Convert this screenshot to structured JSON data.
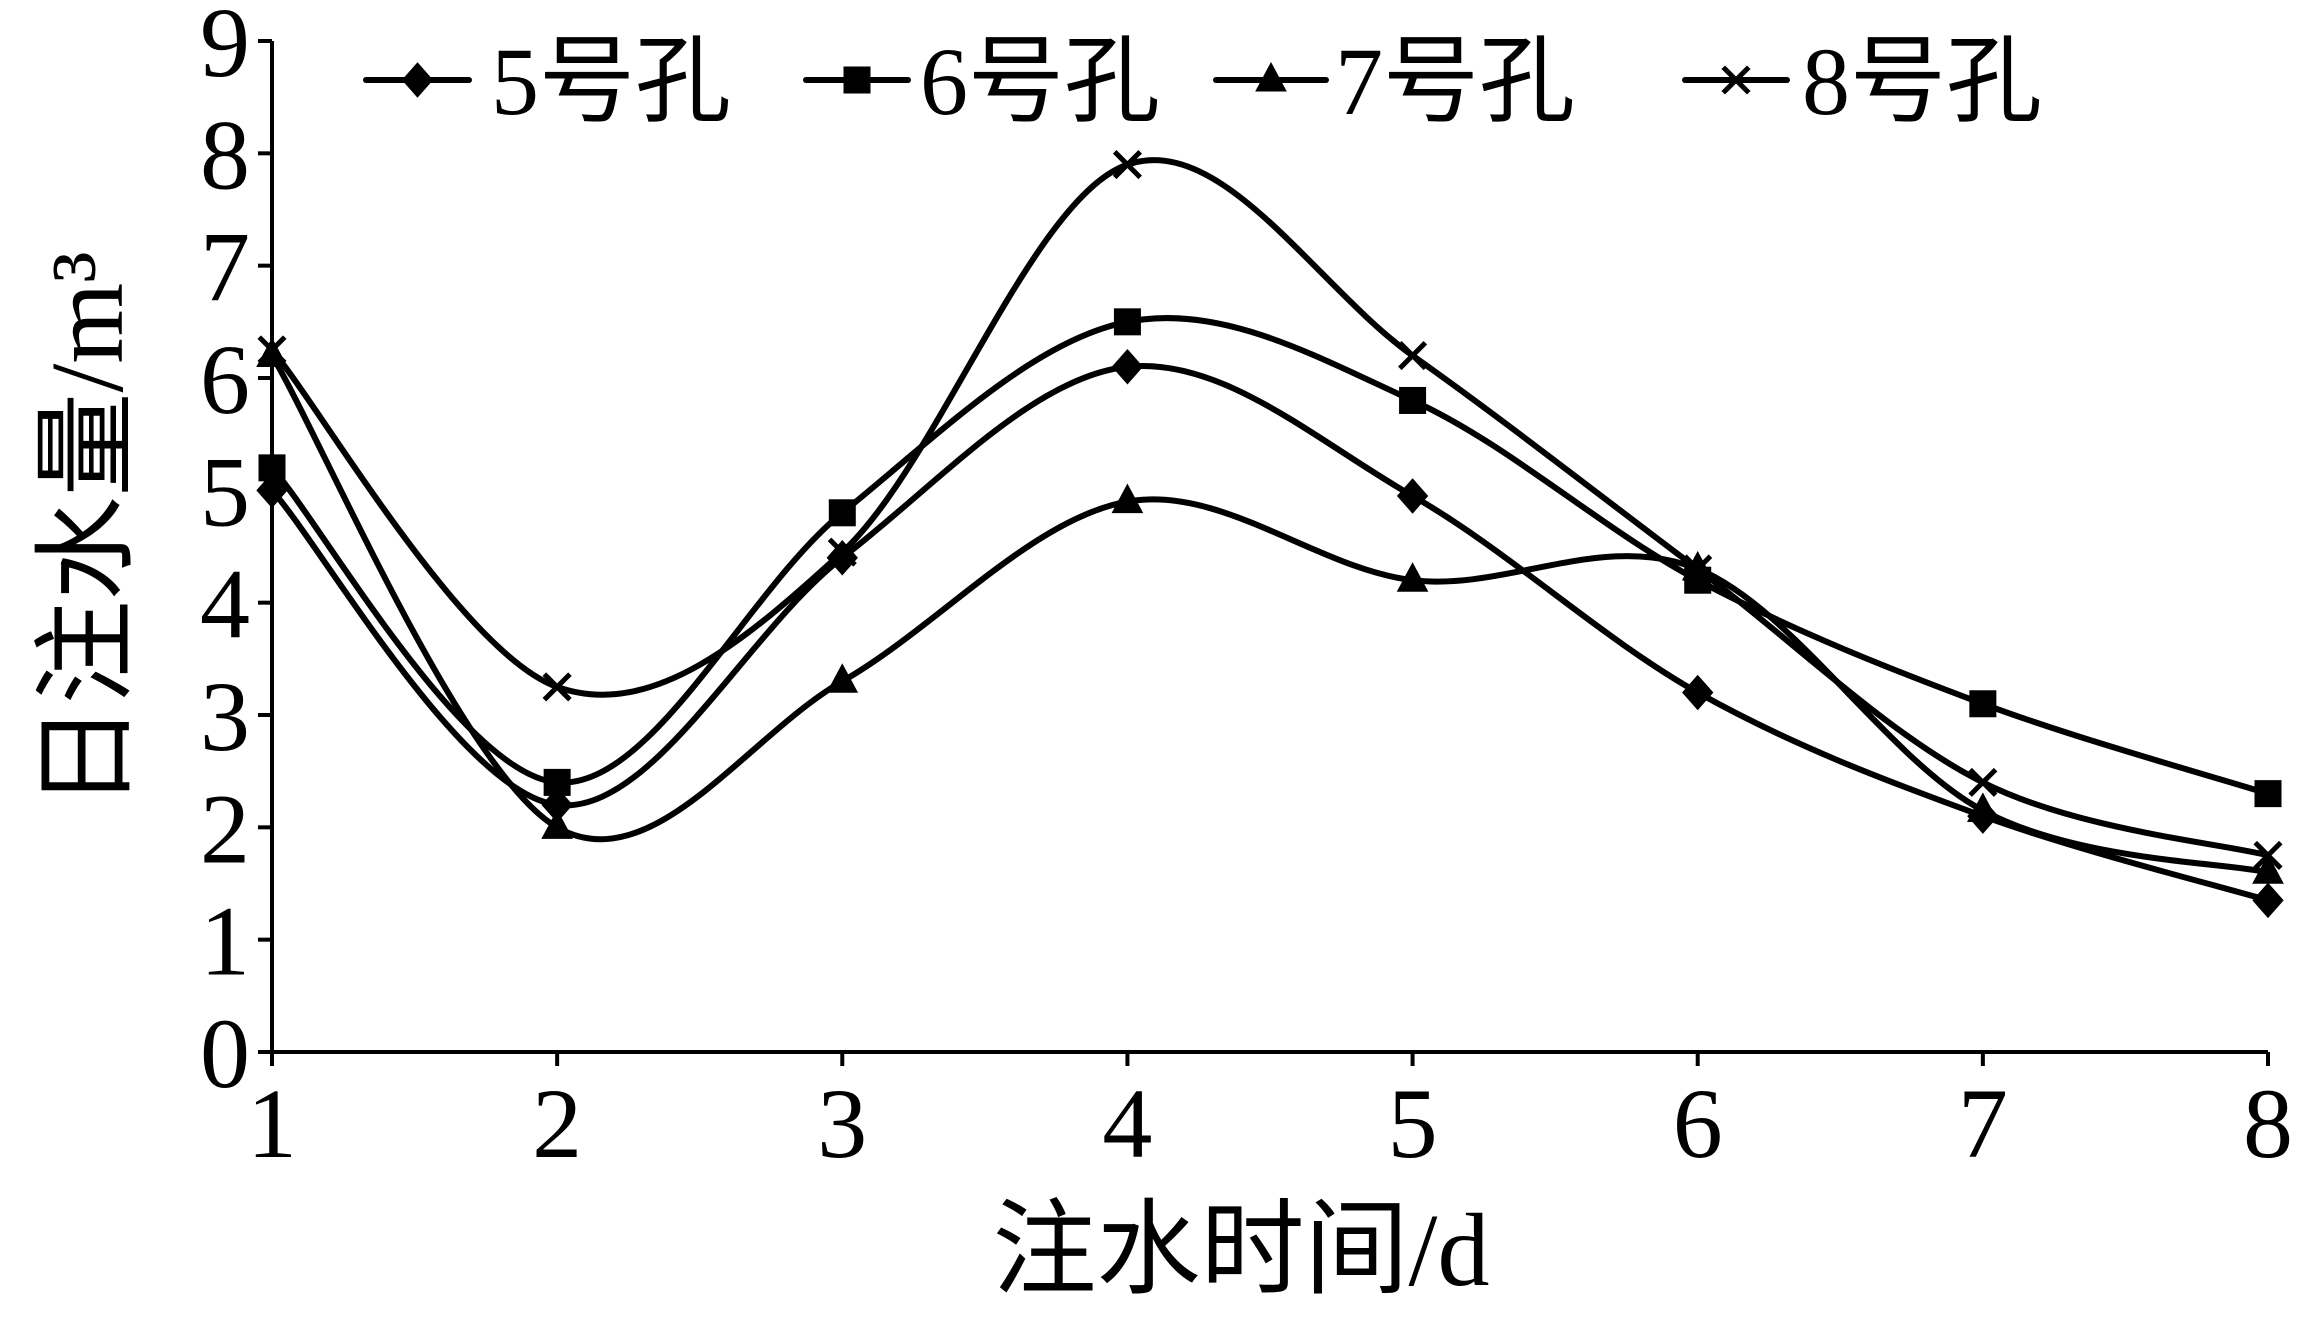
{
  "chart_data": {
    "type": "line",
    "smooth": true,
    "x": [
      1,
      2,
      3,
      4,
      5,
      6,
      7,
      8
    ],
    "xticks": [
      "1",
      "2",
      "3",
      "4",
      "5",
      "6",
      "7",
      "8"
    ],
    "yticks": [
      "0",
      "1",
      "2",
      "3",
      "4",
      "5",
      "6",
      "7",
      "8",
      "9"
    ],
    "xlim": [
      1,
      8
    ],
    "ylim": [
      0,
      9
    ],
    "xlabel": "注水时间/d",
    "ylabel": "日注水量/m³",
    "grid": false,
    "legend": "top",
    "color": "#000000",
    "series": [
      {
        "name": "5号孔",
        "marker": "diamond",
        "values": [
          5.0,
          2.2,
          4.4,
          6.1,
          4.95,
          3.2,
          2.1,
          1.35
        ]
      },
      {
        "name": "6号孔",
        "marker": "square",
        "values": [
          5.2,
          2.4,
          4.8,
          6.5,
          5.8,
          4.2,
          3.1,
          2.3
        ]
      },
      {
        "name": "7号孔",
        "marker": "triangle",
        "values": [
          6.2,
          2.0,
          3.3,
          4.9,
          4.2,
          4.3,
          2.15,
          1.6
        ]
      },
      {
        "name": "8号孔",
        "marker": "cross",
        "values": [
          6.25,
          3.25,
          4.45,
          7.9,
          6.2,
          4.3,
          2.4,
          1.75
        ]
      }
    ]
  }
}
